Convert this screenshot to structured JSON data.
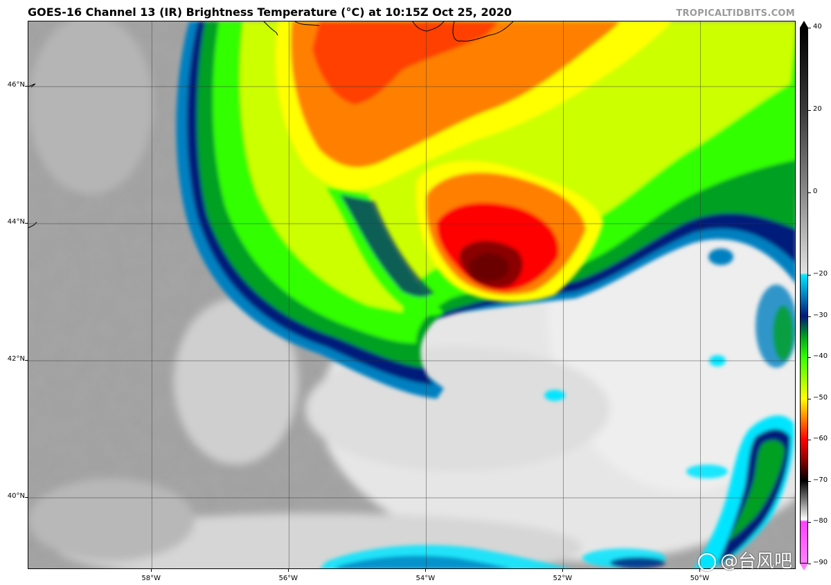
{
  "title": "GOES-16 Channel 13 (IR) Brightness Temperature (°C) at 10:15Z Oct 25, 2020",
  "credit": "TROPICALTIDBITS.COM",
  "map": {
    "lat_labels": [
      "46°N",
      "44°N",
      "42°N",
      "40°N"
    ],
    "lon_labels": [
      "58°W",
      "56°W",
      "54°W",
      "52°W",
      "50°W"
    ],
    "lat_range": [
      38.95,
      46.95
    ],
    "lon_range": [
      -59.8,
      -48.6
    ],
    "colors": {
      "background_gray": "#a0a0a0",
      "storm_center": "#6b0000"
    }
  },
  "colorbar": {
    "labels": [
      "40",
      "20",
      "0",
      "−20",
      "−30",
      "−40",
      "−50",
      "−60",
      "−70",
      "−80",
      "−90"
    ],
    "values": [
      40,
      20,
      0,
      -20,
      -30,
      -40,
      -50,
      -60,
      -70,
      -80,
      -90
    ],
    "range": [
      -90,
      40
    ],
    "stops": [
      {
        "t": 40,
        "color": "#000000"
      },
      {
        "t": 20,
        "color": "#3a3a3a"
      },
      {
        "t": 0,
        "color": "#8a8a8a"
      },
      {
        "t": -19.5,
        "color": "#e0e0e0"
      },
      {
        "t": -20,
        "color": "#00e5ff"
      },
      {
        "t": -25,
        "color": "#0080c0"
      },
      {
        "t": -30,
        "color": "#001a7a"
      },
      {
        "t": -35,
        "color": "#00a020"
      },
      {
        "t": -40,
        "color": "#33ff00"
      },
      {
        "t": -50,
        "color": "#ffff00"
      },
      {
        "t": -55,
        "color": "#ff8000"
      },
      {
        "t": -60,
        "color": "#ff0000"
      },
      {
        "t": -65,
        "color": "#8b0000"
      },
      {
        "t": -70,
        "color": "#000000"
      },
      {
        "t": -75,
        "color": "#808080"
      },
      {
        "t": -79.5,
        "color": "#ffffff"
      },
      {
        "t": -80,
        "color": "#ff40ff"
      },
      {
        "t": -90,
        "color": "#ff80ff"
      }
    ]
  },
  "watermark": "@台风吧"
}
